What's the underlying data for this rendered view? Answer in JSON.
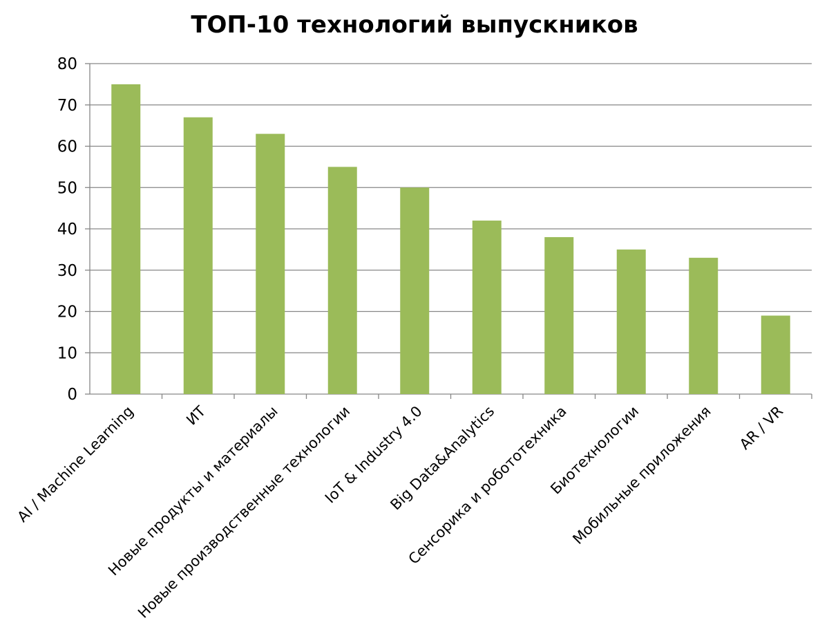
{
  "chart_data": {
    "type": "bar",
    "title": "ТОП-10 технологий выпускников",
    "categories": [
      "AI / Machine Learning",
      "ИТ",
      "Новые продукты и материалы",
      "Новые производственные технологии",
      "IoT & Industry 4.0",
      "Big Data&Analytics",
      "Сенсорика и робототехника",
      "Биотехнологии",
      "Мобильные приложения",
      "AR / VR"
    ],
    "values": [
      75,
      67,
      63,
      55,
      50,
      42,
      38,
      35,
      33,
      19
    ],
    "ylim": [
      0,
      80
    ],
    "yticks": [
      0,
      10,
      20,
      30,
      40,
      50,
      60,
      70,
      80
    ],
    "xlabel": "",
    "ylabel": "",
    "grid": true,
    "legend": "none",
    "bar_color": "#9BBB59",
    "grid_color": "#868686"
  }
}
